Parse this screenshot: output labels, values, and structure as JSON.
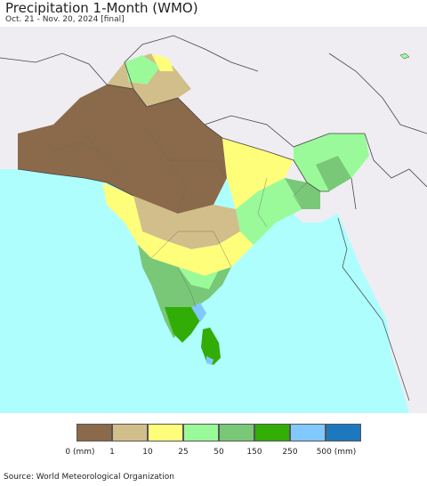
{
  "title": "Precipitation 1-Month (WMO)",
  "subtitle": "Oct. 21 - Nov. 20, 2024 [final]",
  "source": "Source: World Meteorological Organization",
  "colors": {
    "ocean": "#aefefe",
    "outside_land": "#efedf2",
    "border": "#444444"
  },
  "legend": {
    "colors": [
      "#8a6a4a",
      "#d2be8a",
      "#fefe7a",
      "#9afa9a",
      "#78c878",
      "#32ad06",
      "#80c8fe",
      "#1e78be"
    ],
    "labels": [
      "0 (mm)",
      "1",
      "10",
      "25",
      "50",
      "150",
      "250",
      "500 (mm)"
    ]
  }
}
